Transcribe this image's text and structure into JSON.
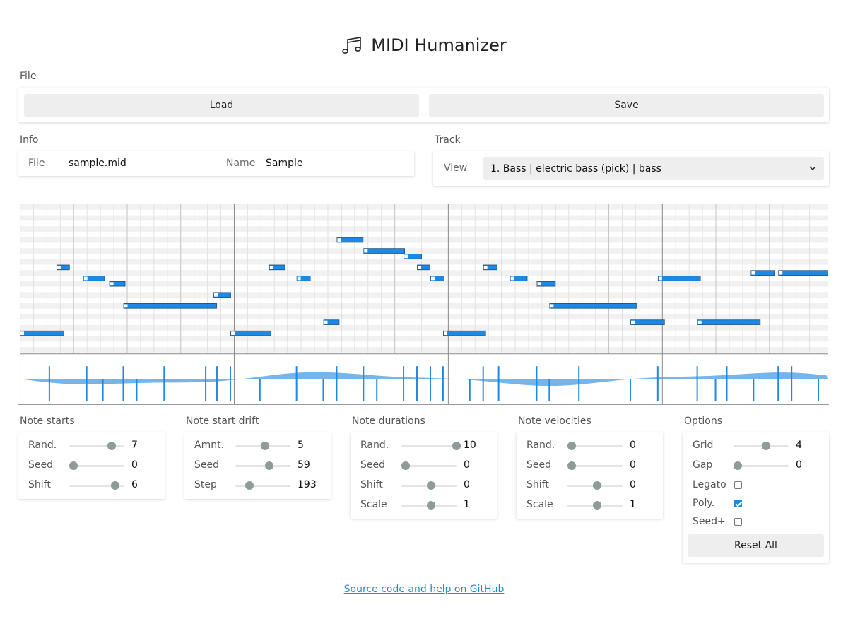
{
  "app": {
    "title": "MIDI Humanizer",
    "icon": "music-notes-icon",
    "accent": "#1e88e5"
  },
  "file": {
    "section": "File",
    "load_label": "Load",
    "save_label": "Save"
  },
  "info": {
    "section": "Info",
    "file_key": "File",
    "file_value": "sample.mid",
    "name_key": "Name",
    "name_value": "Sample"
  },
  "track": {
    "section": "Track",
    "view_label": "View",
    "selected": "1. Bass | electric bass (pick) | bass"
  },
  "panels": [
    {
      "title": "Note starts",
      "rows": [
        {
          "label": "Rand.",
          "value": "7",
          "level": 0.75
        },
        {
          "label": "Seed",
          "value": "0",
          "level": 0.0
        },
        {
          "label": "Shift",
          "value": "6",
          "level": 0.82
        }
      ]
    },
    {
      "title": "Note start drift",
      "rows": [
        {
          "label": "Amnt.",
          "value": "5",
          "level": 0.5
        },
        {
          "label": "Seed",
          "value": "59",
          "level": 0.59
        },
        {
          "label": "Step",
          "value": "193",
          "level": 0.2
        }
      ]
    },
    {
      "title": "Note durations",
      "rows": [
        {
          "label": "Rand.",
          "value": "10",
          "level": 1.0
        },
        {
          "label": "Seed",
          "value": "0",
          "level": 0.0
        },
        {
          "label": "Shift",
          "value": "0",
          "level": 0.5
        },
        {
          "label": "Scale",
          "value": "1",
          "level": 0.5
        }
      ]
    },
    {
      "title": "Note velocities",
      "rows": [
        {
          "label": "Rand.",
          "value": "0",
          "level": 0.0
        },
        {
          "label": "Seed",
          "value": "0",
          "level": 0.0
        },
        {
          "label": "Shift",
          "value": "0",
          "level": 0.5
        },
        {
          "label": "Scale",
          "value": "1",
          "level": 0.5
        }
      ]
    }
  ],
  "options": {
    "title": "Options",
    "grid": {
      "label": "Grid",
      "value": "4",
      "level": 0.55
    },
    "gap": {
      "label": "Gap",
      "value": "0",
      "level": 0.0
    },
    "legato": {
      "label": "Legato",
      "checked": false
    },
    "poly": {
      "label": "Poly.",
      "checked": true
    },
    "seed_plus": {
      "label": "Seed+",
      "checked": false
    },
    "reset_label": "Reset All"
  },
  "footer": {
    "link_text": "Source code and help on GitHub"
  }
}
